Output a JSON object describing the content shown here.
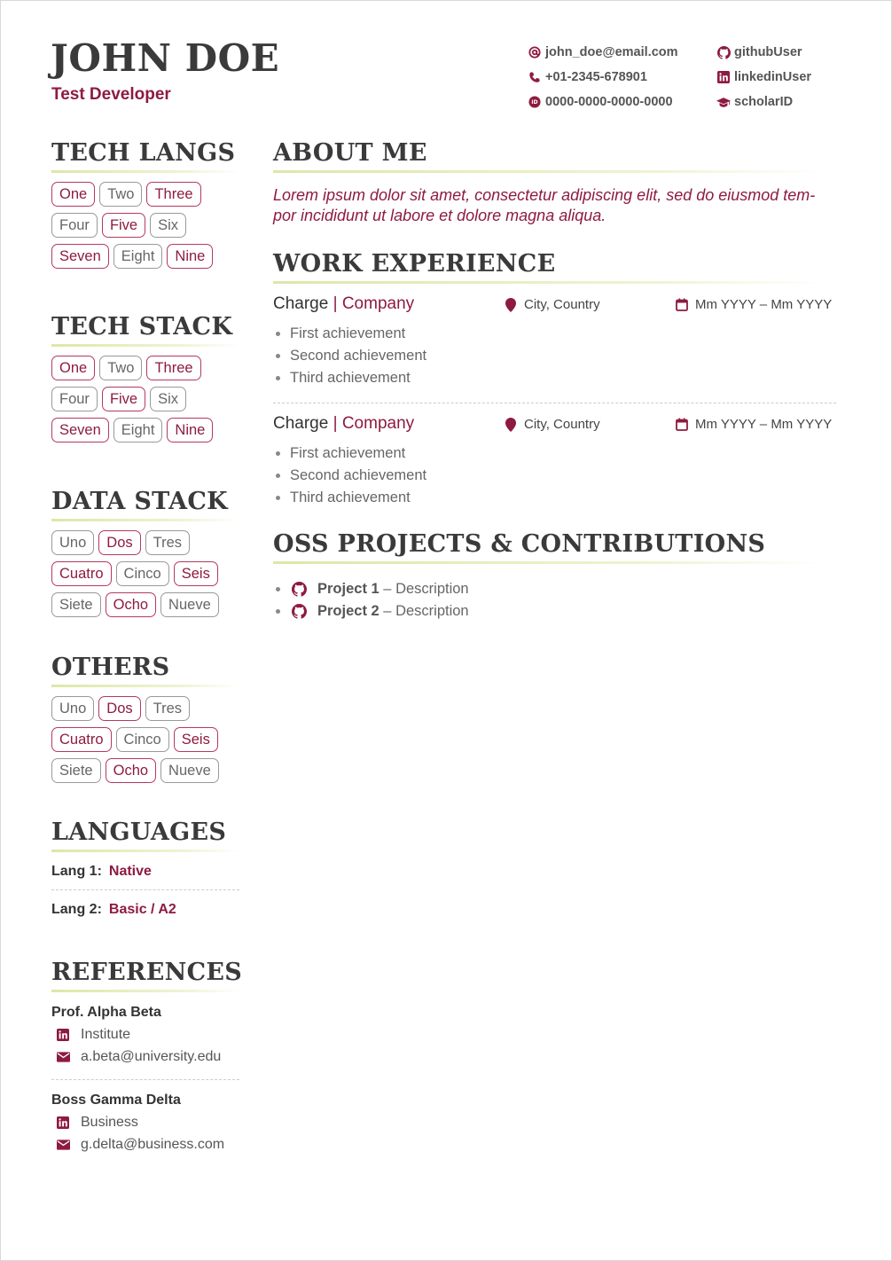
{
  "header": {
    "name": "JOHN DOE",
    "role": "Test Developer",
    "contacts_left": [
      {
        "icon": "at-icon",
        "text": "john_doe@email.com"
      },
      {
        "icon": "phone-icon",
        "text": "+01-2345-678901"
      },
      {
        "icon": "orcid-icon",
        "text": "0000-0000-0000-0000"
      }
    ],
    "contacts_right": [
      {
        "icon": "github-icon",
        "text": "githubUser"
      },
      {
        "icon": "linkedin-icon",
        "text": "linkedinUser"
      },
      {
        "icon": "graduation-cap-icon",
        "text": "scholarID"
      }
    ]
  },
  "colors": {
    "accent": "#8e1b3f",
    "underline": "#dbe8a8",
    "text": "#333333"
  },
  "sidebar": {
    "tech_langs": {
      "title": "TECH LANGS",
      "rows": [
        [
          {
            "t": "One",
            "a": true
          },
          {
            "t": "Two",
            "a": false
          },
          {
            "t": "Three",
            "a": true
          }
        ],
        [
          {
            "t": "Four",
            "a": false
          },
          {
            "t": "Five",
            "a": true
          },
          {
            "t": "Six",
            "a": false
          }
        ],
        [
          {
            "t": "Seven",
            "a": true
          },
          {
            "t": "Eight",
            "a": false
          },
          {
            "t": "Nine",
            "a": true
          }
        ]
      ]
    },
    "tech_stack": {
      "title": "TECH STACK",
      "rows": [
        [
          {
            "t": "One",
            "a": true
          },
          {
            "t": "Two",
            "a": false
          },
          {
            "t": "Three",
            "a": true
          }
        ],
        [
          {
            "t": "Four",
            "a": false
          },
          {
            "t": "Five",
            "a": true
          },
          {
            "t": "Six",
            "a": false
          }
        ],
        [
          {
            "t": "Seven",
            "a": true
          },
          {
            "t": "Eight",
            "a": false
          },
          {
            "t": "Nine",
            "a": true
          }
        ]
      ]
    },
    "data_stack": {
      "title": "DATA STACK",
      "rows": [
        [
          {
            "t": "Uno",
            "a": false
          },
          {
            "t": "Dos",
            "a": true
          },
          {
            "t": "Tres",
            "a": false
          }
        ],
        [
          {
            "t": "Cuatro",
            "a": true
          },
          {
            "t": "Cinco",
            "a": false
          },
          {
            "t": "Seis",
            "a": true
          }
        ],
        [
          {
            "t": "Siete",
            "a": false
          },
          {
            "t": "Ocho",
            "a": true
          },
          {
            "t": "Nueve",
            "a": false
          }
        ]
      ]
    },
    "others": {
      "title": "OTHERS",
      "rows": [
        [
          {
            "t": "Uno",
            "a": false
          },
          {
            "t": "Dos",
            "a": true
          },
          {
            "t": "Tres",
            "a": false
          }
        ],
        [
          {
            "t": "Cuatro",
            "a": true
          },
          {
            "t": "Cinco",
            "a": false
          },
          {
            "t": "Seis",
            "a": true
          }
        ],
        [
          {
            "t": "Siete",
            "a": false
          },
          {
            "t": "Ocho",
            "a": true
          },
          {
            "t": "Nueve",
            "a": false
          }
        ]
      ]
    },
    "languages": {
      "title": "LANGUAGES",
      "items": [
        {
          "label": "Lang 1:",
          "level": "Native"
        },
        {
          "label": "Lang 2:",
          "level": "Basic / A2"
        }
      ]
    },
    "references": {
      "title": "REFERENCES",
      "items": [
        {
          "name": "Prof. Alpha Beta",
          "org": "Institute",
          "email": "a.beta@university.edu"
        },
        {
          "name": "Boss Gamma Delta",
          "org": "Business",
          "email": "g.delta@business.com"
        }
      ]
    }
  },
  "main": {
    "about": {
      "title": "ABOUT ME",
      "text": "Lorem ipsum dolor sit amet, consectetur adipiscing elit, sed do eiusmod tem- por incididunt ut labore et dolore magna aliqua."
    },
    "work": {
      "title": "WORK EXPERIENCE",
      "jobs": [
        {
          "charge": "Charge",
          "separator": "|",
          "company": "Company",
          "location": "City, Country",
          "dates": "Mm YYYY – Mm YYYY",
          "achievements": [
            "First achievement",
            "Second achievement",
            "Third achievement"
          ]
        },
        {
          "charge": "Charge",
          "separator": "|",
          "company": "Company",
          "location": "City, Country",
          "dates": "Mm YYYY – Mm YYYY",
          "achievements": [
            "First achievement",
            "Second achievement",
            "Third achievement"
          ]
        }
      ]
    },
    "oss": {
      "title": "OSS PROJECTS & CONTRIBUTIONS",
      "items": [
        {
          "name": "Project 1",
          "dash": "–",
          "desc": "Description"
        },
        {
          "name": "Project 2",
          "dash": "–",
          "desc": "Description"
        }
      ]
    }
  }
}
